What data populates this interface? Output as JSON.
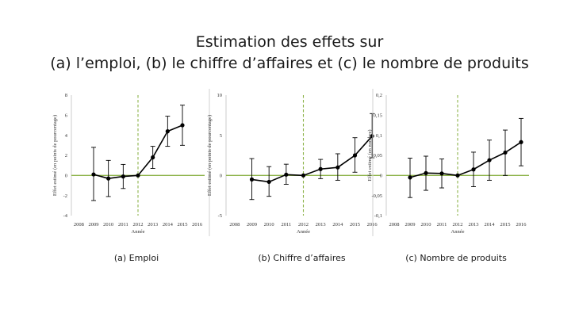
{
  "title": {
    "line1": "Estimation des effets sur",
    "line2": "(a) l’emploi, (b) le chiffre d’affaires et (c) le nombre de produits"
  },
  "colors": {
    "zero_line": "#8db34a",
    "treatment_line": "#8db34a",
    "series": "#000000",
    "axis": "#bfbfbf"
  },
  "chart_data": [
    {
      "type": "line",
      "caption": "(a) Emploi",
      "xlabel": "Année",
      "ylabel": "Effet estimé (en points de pourcentage)",
      "categories": [
        "2008",
        "2009",
        "2010",
        "2011",
        "2012",
        "2013",
        "2014",
        "2015",
        "2016"
      ],
      "ylim": [
        -4,
        8
      ],
      "yticks": [
        "-4",
        "-2",
        "0",
        "2",
        "4",
        "6",
        "8"
      ],
      "treatment_year": "2012",
      "points": [
        {
          "x": "2009",
          "y": 0.1,
          "lo": -2.5,
          "hi": 2.8
        },
        {
          "x": "2010",
          "y": -0.3,
          "lo": -2.1,
          "hi": 1.5
        },
        {
          "x": "2011",
          "y": -0.1,
          "lo": -1.3,
          "hi": 1.1
        },
        {
          "x": "2012",
          "y": 0,
          "lo": 0,
          "hi": 0
        },
        {
          "x": "2013",
          "y": 1.8,
          "lo": 0.7,
          "hi": 2.9
        },
        {
          "x": "2014",
          "y": 4.4,
          "lo": 2.9,
          "hi": 5.9
        },
        {
          "x": "2015",
          "y": 5.0,
          "lo": 3.0,
          "hi": 7.0
        }
      ]
    },
    {
      "type": "line",
      "caption": "(b) Chiffre d’affaires",
      "xlabel": "Année",
      "ylabel": "Effet estimé (en points de pourcentage)",
      "categories": [
        "2008",
        "2009",
        "2010",
        "2011",
        "2012",
        "2013",
        "2014",
        "2015",
        "2016"
      ],
      "ylim": [
        -5,
        10
      ],
      "yticks": [
        "-5",
        "0",
        "5",
        "10"
      ],
      "treatment_year": "2012",
      "points": [
        {
          "x": "2009",
          "y": -0.5,
          "lo": -3.0,
          "hi": 2.1
        },
        {
          "x": "2010",
          "y": -0.8,
          "lo": -2.6,
          "hi": 1.1
        },
        {
          "x": "2011",
          "y": 0.1,
          "lo": -1.1,
          "hi": 1.4
        },
        {
          "x": "2012",
          "y": 0,
          "lo": 0,
          "hi": 0
        },
        {
          "x": "2013",
          "y": 0.8,
          "lo": -0.4,
          "hi": 2.0
        },
        {
          "x": "2014",
          "y": 1.0,
          "lo": -0.6,
          "hi": 2.7
        },
        {
          "x": "2015",
          "y": 2.5,
          "lo": 0.4,
          "hi": 4.7
        },
        {
          "x": "2016",
          "y": 4.9,
          "lo": 2.2,
          "hi": 7.7
        }
      ]
    },
    {
      "type": "line",
      "caption": "(c) Nombre de produits",
      "xlabel": "Année",
      "ylabel": "Effet estimé (en nombre)",
      "categories": [
        "2008",
        "2009",
        "2010",
        "2011",
        "2012",
        "2013",
        "2014",
        "2015",
        "2016"
      ],
      "ylim": [
        -0.1,
        0.2
      ],
      "yticks": [
        "-0,1",
        "-0,05",
        "0",
        "0,05",
        "0,1",
        "0,15",
        "0,2"
      ],
      "treatment_year": "2012",
      "points": [
        {
          "x": "2009",
          "y": -0.005,
          "lo": -0.055,
          "hi": 0.043
        },
        {
          "x": "2010",
          "y": 0.006,
          "lo": -0.037,
          "hi": 0.048
        },
        {
          "x": "2011",
          "y": 0.005,
          "lo": -0.031,
          "hi": 0.041
        },
        {
          "x": "2012",
          "y": 0,
          "lo": 0,
          "hi": 0
        },
        {
          "x": "2013",
          "y": 0.015,
          "lo": -0.028,
          "hi": 0.058
        },
        {
          "x": "2014",
          "y": 0.038,
          "lo": -0.012,
          "hi": 0.088
        },
        {
          "x": "2015",
          "y": 0.057,
          "lo": 0.0,
          "hi": 0.113
        },
        {
          "x": "2016",
          "y": 0.083,
          "lo": 0.024,
          "hi": 0.142
        }
      ]
    }
  ]
}
